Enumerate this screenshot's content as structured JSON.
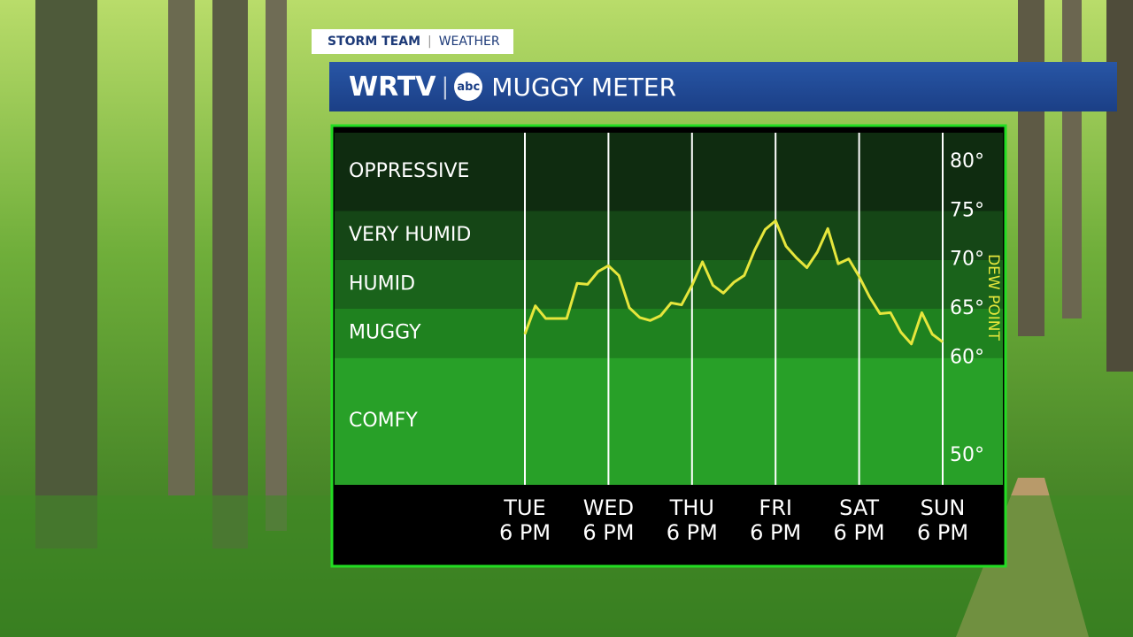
{
  "header": {
    "tab_left": "STORM TEAM",
    "tab_right": "WEATHER",
    "brand": "WRTV",
    "network": "abc"
  },
  "chart_data": {
    "type": "line",
    "title": "MUGGY METER",
    "series": [
      {
        "name": "DEW POINT",
        "color": "#e6e63c",
        "values": [
          62.4,
          65.3,
          64.0,
          64.0,
          64.0,
          67.6,
          67.5,
          68.8,
          69.4,
          68.4,
          65.1,
          64.1,
          63.8,
          64.3,
          65.6,
          65.4,
          67.4,
          69.8,
          67.4,
          66.6,
          67.7,
          68.4,
          71.0,
          73.1,
          74.0,
          71.4,
          70.2,
          69.2,
          70.8,
          73.2,
          69.6,
          70.1,
          68.3,
          66.2,
          64.5,
          64.6,
          62.6,
          61.4,
          64.6,
          62.4,
          61.6
        ]
      }
    ],
    "xlim": [
      0,
      40
    ],
    "xticks": [
      {
        "value": 0,
        "label": "TUE\n6 PM"
      },
      {
        "value": 8,
        "label": "WED\n6 PM"
      },
      {
        "value": 16,
        "label": "THU\n6 PM"
      },
      {
        "value": 24,
        "label": "FRI\n6 PM"
      },
      {
        "value": 32,
        "label": "SAT\n6 PM"
      },
      {
        "value": 40,
        "label": "SUN\n6 PM"
      }
    ],
    "ylim": [
      47,
      83
    ],
    "yticks": [
      {
        "value": 80,
        "label": "80°"
      },
      {
        "value": 75,
        "label": "75°"
      },
      {
        "value": 70,
        "label": "70°"
      },
      {
        "value": 65,
        "label": "65°"
      },
      {
        "value": 60,
        "label": "60°"
      },
      {
        "value": 50,
        "label": "50°"
      }
    ],
    "bands": [
      {
        "label": "OPPRESSIVE",
        "from": 75,
        "to": 83,
        "color": "#0f2c10"
      },
      {
        "label": "VERY HUMID",
        "from": 70,
        "to": 75,
        "color": "#154616"
      },
      {
        "label": "HUMID",
        "from": 65,
        "to": 70,
        "color": "#1a631b"
      },
      {
        "label": "MUGGY",
        "from": 60,
        "to": 65,
        "color": "#1f821f"
      },
      {
        "label": "COMFY",
        "from": 47,
        "to": 60,
        "color": "#28a028"
      }
    ]
  }
}
